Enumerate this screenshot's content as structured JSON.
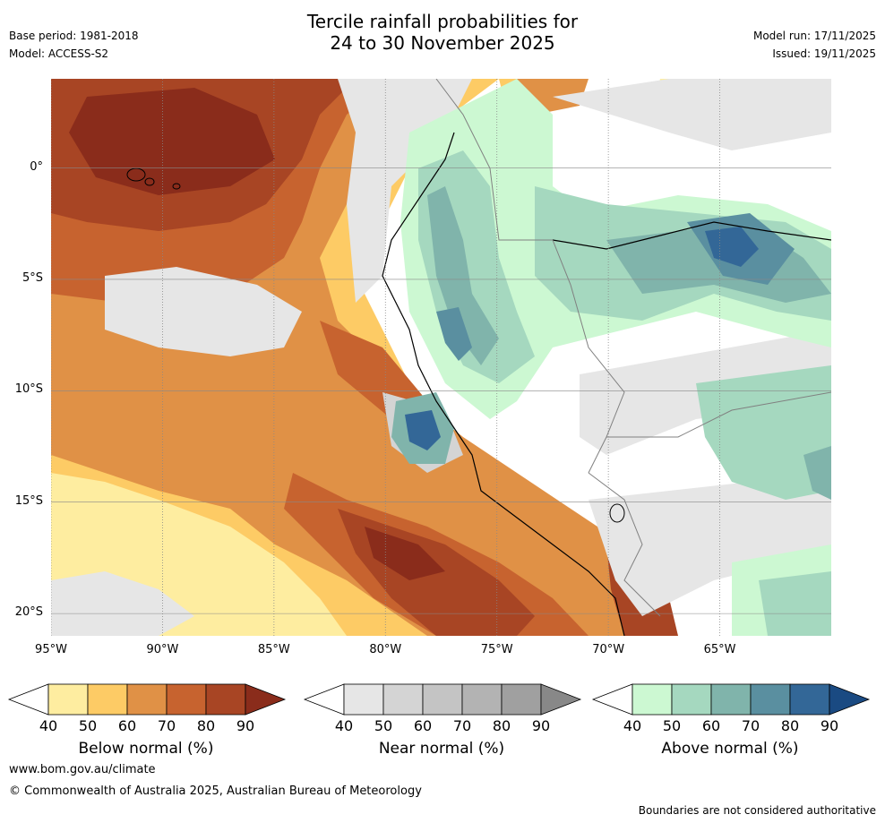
{
  "title": {
    "line1": "Tercile rainfall probabilities for",
    "line2": "24 to 30 November 2025"
  },
  "meta": {
    "base_period": "Base period: 1981-2018",
    "model": "Model: ACCESS-S2",
    "model_run": "Model run: 17/11/2025",
    "issued": "Issued: 19/11/2025"
  },
  "map": {
    "lat_ticks": [
      "0°",
      "5°S",
      "10°S",
      "15°S",
      "20°S"
    ],
    "lon_ticks": [
      "95°W",
      "90°W",
      "85°W",
      "80°W",
      "75°W",
      "70°W",
      "65°W"
    ],
    "lat_range": [
      -21,
      4
    ],
    "lon_range": [
      -95,
      -60
    ],
    "gridline_color": "#888888",
    "coastline_color": "#000000",
    "boundary_color": "#808080"
  },
  "legends": [
    {
      "label": "Below normal (%)",
      "ticks": [
        "40",
        "50",
        "60",
        "70",
        "80",
        "90"
      ],
      "colors": [
        "#ffffff",
        "#feeda0",
        "#fdcb65",
        "#e09146",
        "#c7632f",
        "#a84524",
        "#8a2c1b"
      ]
    },
    {
      "label": "Near normal (%)",
      "ticks": [
        "40",
        "50",
        "60",
        "70",
        "80",
        "90"
      ],
      "colors": [
        "#ffffff",
        "#e6e6e6",
        "#d4d4d4",
        "#c4c4c4",
        "#b3b3b3",
        "#a0a0a0",
        "#888888"
      ]
    },
    {
      "label": "Above normal (%)",
      "ticks": [
        "40",
        "50",
        "60",
        "70",
        "80",
        "90"
      ],
      "colors": [
        "#ffffff",
        "#ccf8d2",
        "#a5d8bf",
        "#80b4ab",
        "#5a8fa0",
        "#336797",
        "#1a4a82"
      ]
    }
  ],
  "footer": {
    "website": "www.bom.gov.au/climate",
    "copyright": "© Commonwealth of Australia 2025, Australian Bureau of Meteorology",
    "disclaimer": "Boundaries are not considered authoritative"
  }
}
